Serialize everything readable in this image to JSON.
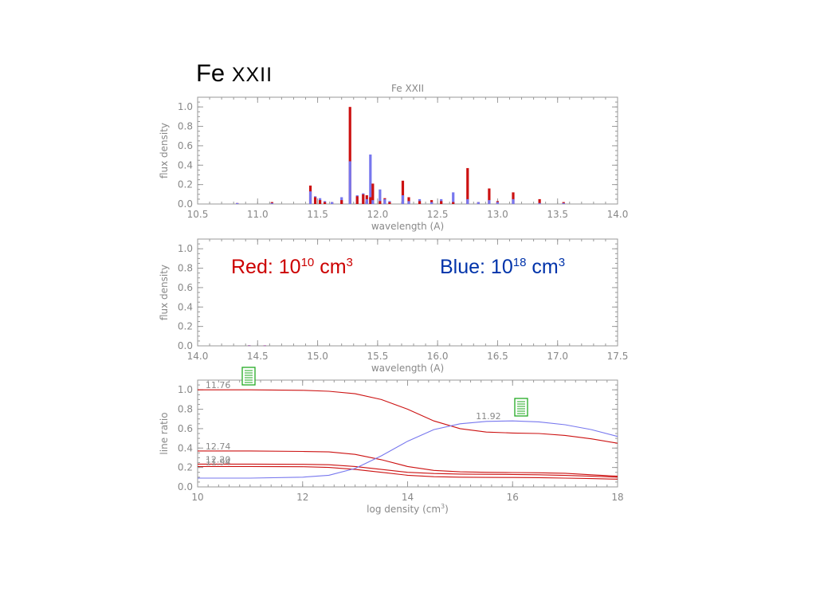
{
  "slide": {
    "title_main": "Fe",
    "title_ion": "XXII"
  },
  "legend": {
    "red_prefix": "Red: 10",
    "red_exp": "10",
    "red_unit": " cm",
    "red_unit_exp": "3",
    "blue_prefix": "Blue: 10",
    "blue_exp": "18",
    "blue_unit": " cm",
    "blue_unit_exp": "3",
    "red_color": "#cc0000",
    "blue_color": "#0033aa"
  },
  "colors": {
    "red_series": "#cc1111",
    "blue_series": "#7777ee",
    "axis": "#999999",
    "label": "#888888",
    "note_icon": "#22aa22"
  },
  "icons": [
    "note-icon",
    "note-icon"
  ],
  "chart_data": [
    {
      "type": "bar",
      "title": "Fe XXII",
      "xlabel": "wavelength (A)",
      "ylabel": "flux density",
      "xlim": [
        10.5,
        14.0
      ],
      "ylim": [
        0.0,
        1.1
      ],
      "xticks": [
        "10.5",
        "11.0",
        "11.5",
        "12.0",
        "12.5",
        "13.0",
        "13.5",
        "14.0"
      ],
      "yticks": [
        "0.0",
        "0.2",
        "0.4",
        "0.6",
        "0.8",
        "1.0"
      ],
      "series": [
        {
          "name": "Red: 10^10 cm^3",
          "x": [
            10.83,
            11.12,
            11.44,
            11.48,
            11.52,
            11.56,
            11.62,
            11.7,
            11.77,
            11.83,
            11.88,
            11.91,
            11.94,
            11.96,
            12.02,
            12.06,
            12.1,
            12.21,
            12.26,
            12.35,
            12.45,
            12.53,
            12.63,
            12.75,
            12.84,
            12.93,
            13.0,
            13.13,
            13.35,
            13.55
          ],
          "values": [
            0.01,
            0.02,
            0.19,
            0.07,
            0.04,
            0.02,
            0.02,
            0.04,
            1.0,
            0.08,
            0.1,
            0.09,
            0.07,
            0.21,
            0.03,
            0.06,
            0.02,
            0.24,
            0.07,
            0.03,
            0.04,
            0.03,
            0.02,
            0.37,
            0.02,
            0.16,
            0.03,
            0.12,
            0.05,
            0.02
          ]
        },
        {
          "name": "Blue: 10^18 cm^3",
          "x": [
            10.83,
            11.12,
            11.44,
            11.48,
            11.52,
            11.56,
            11.62,
            11.7,
            11.77,
            11.83,
            11.88,
            11.91,
            11.94,
            11.96,
            12.02,
            12.06,
            12.1,
            12.21,
            12.26,
            12.35,
            12.45,
            12.53,
            12.63,
            12.75,
            12.84,
            12.93,
            13.0,
            13.13,
            13.35,
            13.55
          ],
          "values": [
            0.01,
            0.01,
            0.13,
            0.08,
            0.06,
            0.03,
            0.02,
            0.07,
            0.44,
            0.09,
            0.11,
            0.05,
            0.51,
            0.04,
            0.15,
            0.05,
            0.03,
            0.09,
            0.03,
            0.05,
            0.02,
            0.05,
            0.12,
            0.05,
            0.02,
            0.04,
            0.02,
            0.05,
            0.01,
            0.01
          ]
        }
      ]
    },
    {
      "type": "bar",
      "title": "",
      "xlabel": "wavelength (A)",
      "ylabel": "flux density",
      "xlim": [
        14.0,
        17.5
      ],
      "ylim": [
        0.0,
        1.1
      ],
      "xticks": [
        "14.0",
        "14.5",
        "15.0",
        "15.5",
        "16.0",
        "16.5",
        "17.0",
        "17.5"
      ],
      "yticks": [
        "0.0",
        "0.2",
        "0.4",
        "0.6",
        "0.8",
        "1.0"
      ],
      "series": [
        {
          "name": "Red: 10^10 cm^3",
          "x": [
            14.43,
            14.56
          ],
          "values": [
            0.006,
            0.005
          ]
        },
        {
          "name": "Blue: 10^18 cm^3",
          "x": [
            14.43,
            14.56
          ],
          "values": [
            0.004,
            0.003
          ]
        }
      ]
    },
    {
      "type": "line",
      "title": "",
      "xlabel": "log density (cm",
      "xlabel_sup": "3",
      "xlabel_tail": ")",
      "ylabel": "line ratio",
      "xlim": [
        10,
        18
      ],
      "ylim": [
        0.0,
        1.1
      ],
      "xticks": [
        "10",
        "12",
        "14",
        "16",
        "18"
      ],
      "yticks": [
        "0.0",
        "0.2",
        "0.4",
        "0.6",
        "0.8",
        "1.0"
      ],
      "series": [
        {
          "name": "11.76",
          "color": "red",
          "x": [
            10,
            11,
            12,
            12.5,
            13,
            13.5,
            14,
            14.5,
            15,
            15.5,
            16,
            16.5,
            17,
            17.5,
            18
          ],
          "values": [
            1.0,
            1.0,
            0.995,
            0.985,
            0.96,
            0.9,
            0.8,
            0.68,
            0.6,
            0.565,
            0.555,
            0.55,
            0.53,
            0.495,
            0.45
          ]
        },
        {
          "name": "12.74",
          "color": "red",
          "x": [
            10,
            11,
            12,
            12.5,
            13,
            13.5,
            14,
            14.5,
            15,
            15.5,
            16,
            16.5,
            17,
            17.5,
            18
          ],
          "values": [
            0.37,
            0.37,
            0.365,
            0.36,
            0.335,
            0.28,
            0.21,
            0.17,
            0.155,
            0.15,
            0.148,
            0.145,
            0.14,
            0.125,
            0.11
          ]
        },
        {
          "name": "12.20",
          "color": "red",
          "x": [
            10,
            11,
            12,
            12.5,
            13,
            13.5,
            14,
            14.5,
            15,
            15.5,
            16,
            16.5,
            17,
            17.5,
            18
          ],
          "values": [
            0.235,
            0.235,
            0.232,
            0.228,
            0.21,
            0.18,
            0.15,
            0.138,
            0.132,
            0.13,
            0.128,
            0.125,
            0.118,
            0.11,
            0.1
          ]
        },
        {
          "name": "11.94",
          "color": "red",
          "x": [
            10,
            11,
            12,
            12.5,
            13,
            13.5,
            14,
            14.5,
            15,
            15.5,
            16,
            16.5,
            17,
            17.5,
            18
          ],
          "values": [
            0.21,
            0.21,
            0.208,
            0.2,
            0.18,
            0.15,
            0.12,
            0.105,
            0.1,
            0.098,
            0.097,
            0.095,
            0.09,
            0.085,
            0.08
          ]
        },
        {
          "name": "11.92",
          "color": "blue",
          "x": [
            10,
            11,
            12,
            12.5,
            13,
            13.5,
            14,
            14.5,
            15,
            15.5,
            16,
            16.5,
            17,
            17.5,
            18
          ],
          "values": [
            0.09,
            0.09,
            0.1,
            0.12,
            0.19,
            0.32,
            0.47,
            0.59,
            0.65,
            0.675,
            0.68,
            0.67,
            0.64,
            0.59,
            0.52
          ]
        }
      ],
      "annotations": [
        {
          "text": "11.76",
          "x": 10.15,
          "y": 1.0
        },
        {
          "text": "12.74",
          "x": 10.15,
          "y": 0.37
        },
        {
          "text": "12.20",
          "x": 10.15,
          "y": 0.235
        },
        {
          "text": "11.94",
          "x": 10.15,
          "y": 0.21
        },
        {
          "text": "11.92",
          "x": 15.3,
          "y": 0.68
        }
      ]
    }
  ]
}
